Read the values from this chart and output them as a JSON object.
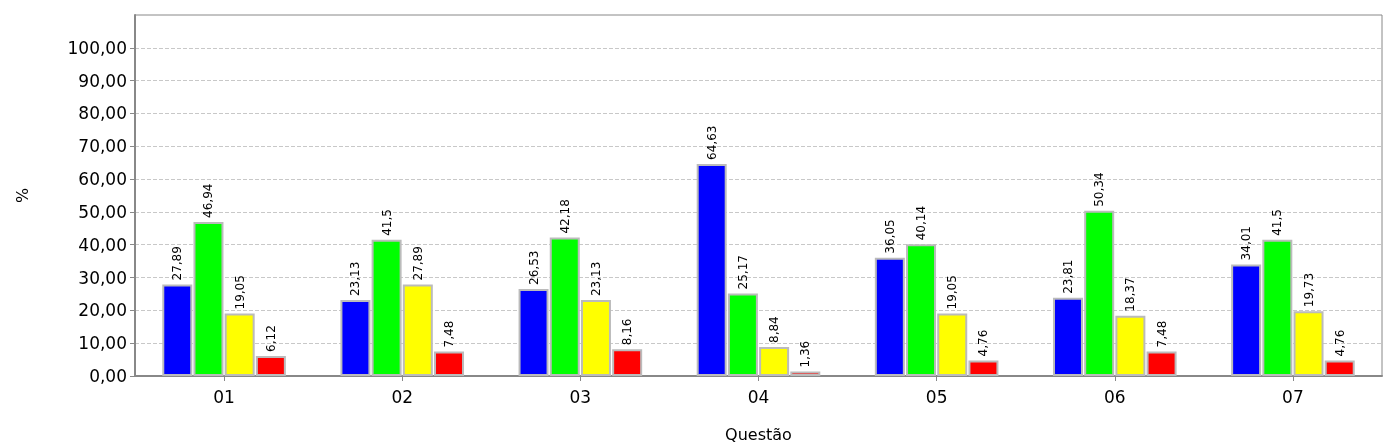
{
  "chart_data": {
    "type": "bar",
    "xlabel": "Questão",
    "ylabel": "%",
    "categories": [
      "01",
      "02",
      "03",
      "04",
      "05",
      "06",
      "07"
    ],
    "series": [
      {
        "color": "#0000ff",
        "values": [
          27.89,
          23.13,
          26.53,
          64.63,
          36.05,
          23.81,
          34.01
        ],
        "value_labels": [
          "27,89",
          "23,13",
          "26,53",
          "64,63",
          "36,05",
          "23,81",
          "34,01"
        ]
      },
      {
        "color": "#00ff00",
        "values": [
          46.94,
          41.5,
          42.18,
          25.17,
          40.14,
          50.34,
          41.5
        ],
        "value_labels": [
          "46,94",
          "41,5",
          "42,18",
          "25,17",
          "40,14",
          "50,34",
          "41,5"
        ]
      },
      {
        "color": "#ffff00",
        "values": [
          19.05,
          27.89,
          23.13,
          8.84,
          19.05,
          18.37,
          19.73
        ],
        "value_labels": [
          "19,05",
          "27,89",
          "23,13",
          "8,84",
          "19,05",
          "18,37",
          "19,73"
        ]
      },
      {
        "color": "#ff0000",
        "values": [
          6.12,
          7.48,
          8.16,
          1.36,
          4.76,
          7.48,
          4.76
        ],
        "value_labels": [
          "6,12",
          "7,48",
          "8,16",
          "1,36",
          "4,76",
          "7,48",
          "4,76"
        ]
      }
    ],
    "ylim": [
      0,
      110
    ],
    "yticks": [
      {
        "value": 0,
        "label": "0,00"
      },
      {
        "value": 10,
        "label": "10,00"
      },
      {
        "value": 20,
        "label": "20,00"
      },
      {
        "value": 30,
        "label": "30,00"
      },
      {
        "value": 40,
        "label": "40,00"
      },
      {
        "value": 50,
        "label": "50,00"
      },
      {
        "value": 60,
        "label": "60,00"
      },
      {
        "value": 70,
        "label": "70,00"
      },
      {
        "value": 80,
        "label": "80,00"
      },
      {
        "value": 90,
        "label": "90,00"
      },
      {
        "value": 100,
        "label": "100,00"
      }
    ],
    "grid": "y"
  }
}
